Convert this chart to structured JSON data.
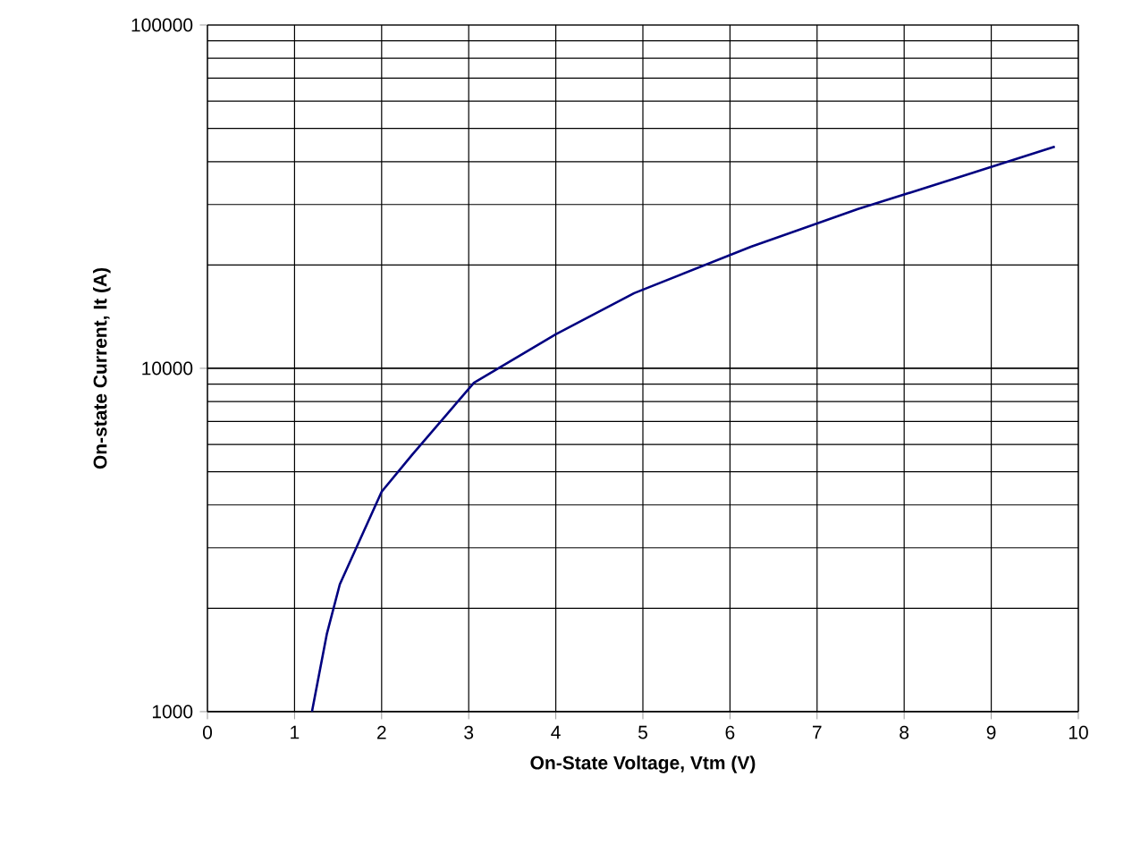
{
  "chart_data": {
    "type": "line",
    "xlabel": "On-State Voltage, Vtm (V)",
    "ylabel": "On-state Current, It (A)",
    "x": [
      1.2,
      1.37,
      1.52,
      2.0,
      2.34,
      3.06,
      4.0,
      4.9,
      6.24,
      7.47,
      8.7,
      9.73
    ],
    "series": [
      {
        "color": "#000080",
        "values": [
          1000,
          1680,
          2350,
          4370,
          5560,
          9080,
          12560,
          16560,
          22600,
          29100,
          36500,
          44250
        ]
      }
    ],
    "xlim": [
      0,
      10
    ],
    "xticks": [
      0,
      1,
      2,
      3,
      4,
      5,
      6,
      7,
      8,
      9,
      10
    ],
    "ylim": [
      1000,
      100000
    ],
    "yticks": [
      1000,
      10000,
      100000
    ],
    "log": "y",
    "grid": true,
    "marker": "none",
    "line_style": "solid"
  }
}
